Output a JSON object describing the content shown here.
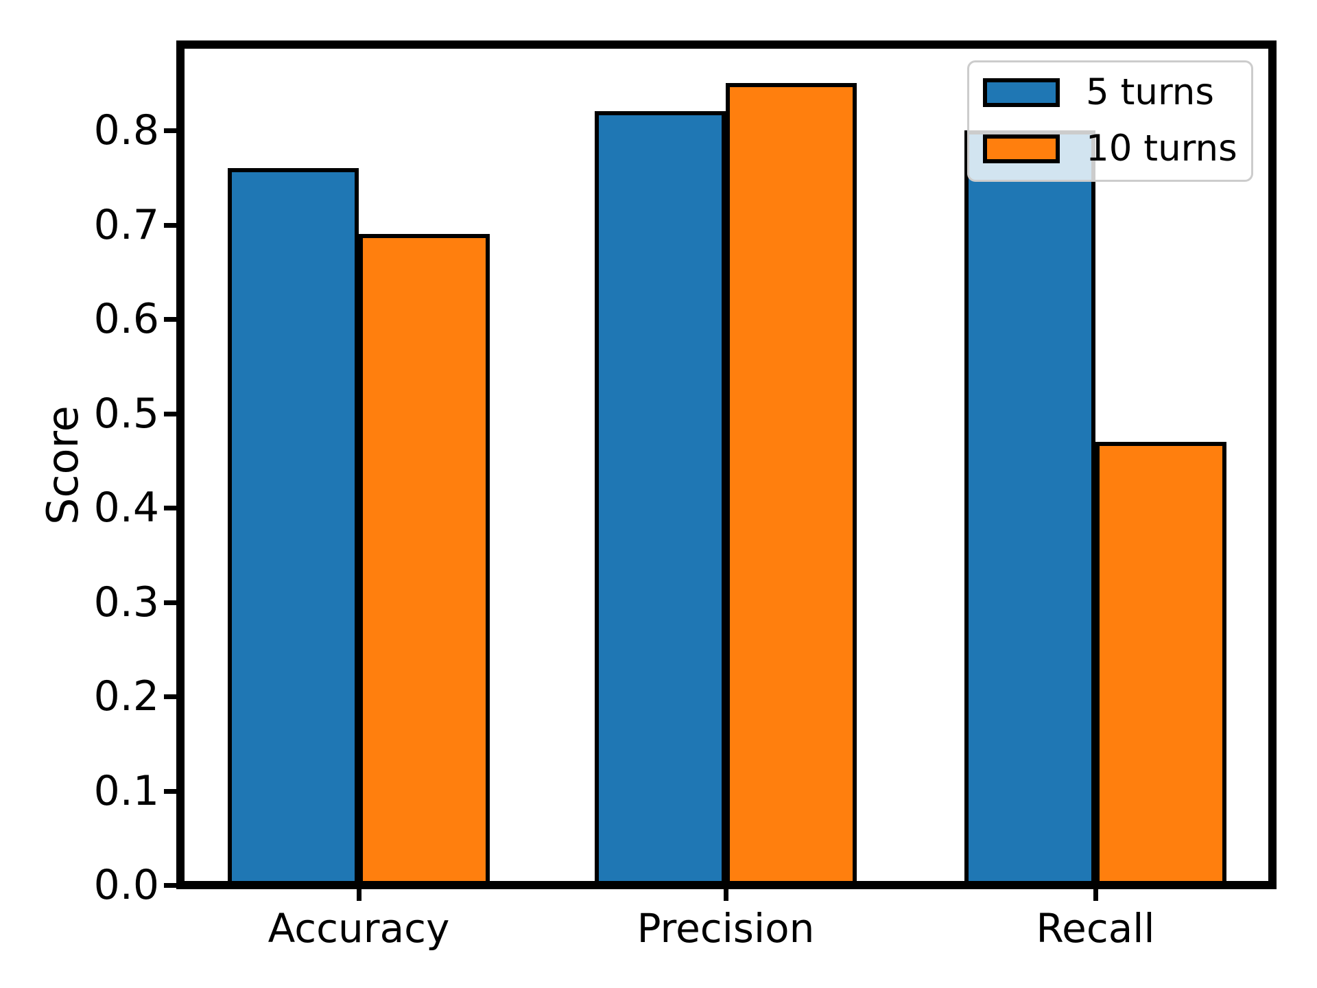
{
  "chart_data": {
    "type": "bar",
    "title": "",
    "xlabel": "",
    "ylabel": "Score",
    "categories": [
      "Accuracy",
      "Precision",
      "Recall"
    ],
    "series": [
      {
        "name": "5 turns",
        "color": "#1f77b4",
        "values": [
          0.76,
          0.82,
          0.8
        ]
      },
      {
        "name": "10 turns",
        "color": "#ff7f0e",
        "values": [
          0.69,
          0.85,
          0.47
        ]
      }
    ],
    "ylim": [
      0.0,
      0.89
    ],
    "ytick_labels": [
      "0.0",
      "0.1",
      "0.2",
      "0.3",
      "0.4",
      "0.5",
      "0.6",
      "0.7",
      "0.8"
    ],
    "grid": false,
    "legend_position": "upper right",
    "bar_edge_color": "#000000",
    "background_color": "#ffffff"
  }
}
